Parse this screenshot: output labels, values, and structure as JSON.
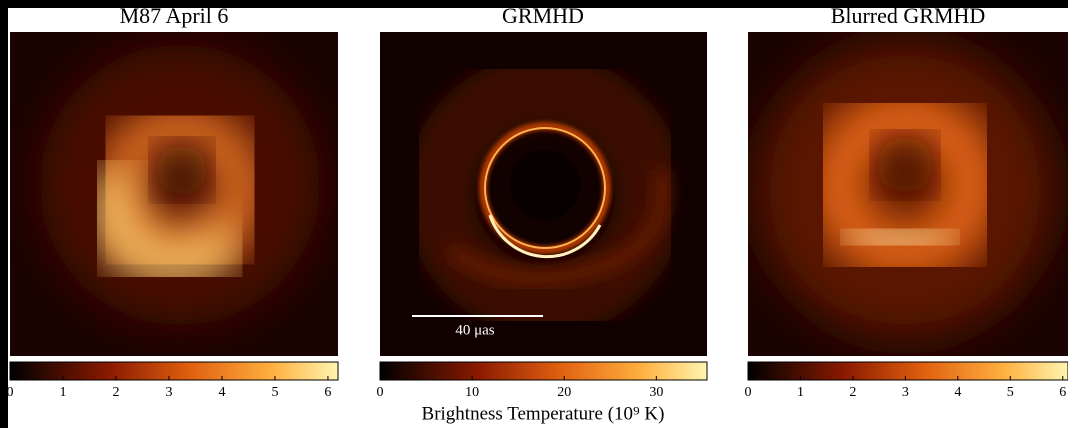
{
  "panels": [
    {
      "title": "M87 April 6",
      "colorbar": {
        "lim": [
          0,
          6.19
        ],
        "ticks": [
          0,
          1,
          2,
          3,
          4,
          5,
          6
        ]
      }
    },
    {
      "title": "GRMHD",
      "scale_bar": "40 μas",
      "colorbar": {
        "lim": [
          0,
          35.5
        ],
        "ticks": [
          0,
          10,
          20,
          30
        ]
      }
    },
    {
      "title": "Blurred GRMHD",
      "colorbar": {
        "lim": [
          0,
          6.1
        ],
        "ticks": [
          0,
          1,
          2,
          3,
          4,
          5,
          6
        ]
      }
    }
  ],
  "colorbar_label": "Brightness Temperature (10⁹ K)"
}
